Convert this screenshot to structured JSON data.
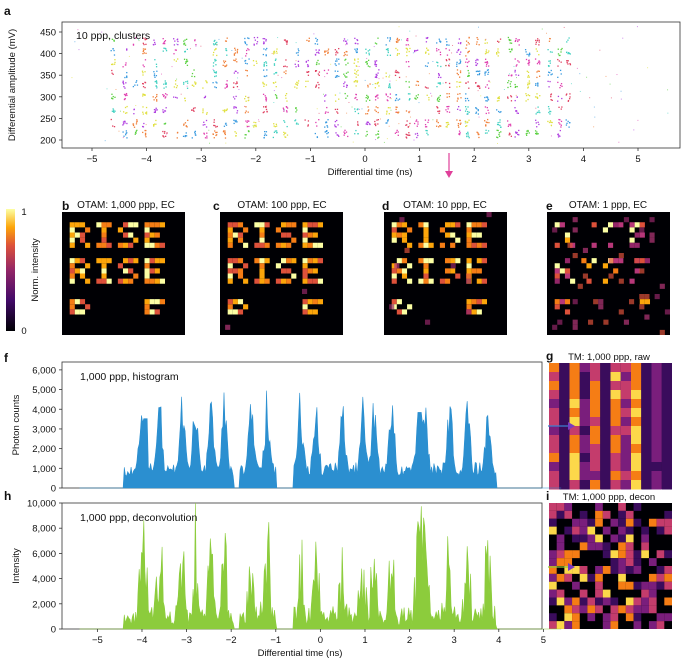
{
  "panel_letters": [
    "a",
    "b",
    "c",
    "d",
    "e",
    "f",
    "g",
    "h",
    "i"
  ],
  "panel_a": {
    "annotation": "10 ppp, clusters",
    "xlabel": "Differential time (ns)",
    "ylabel": "Differential amplitude (mV)",
    "x_ticks": [
      "−5",
      "−4",
      "−3",
      "−2",
      "−1",
      "0",
      "1",
      "2",
      "3",
      "4",
      "5"
    ],
    "y_ticks": [
      "200",
      "250",
      "300",
      "350",
      "400",
      "450"
    ]
  },
  "panel_titles": {
    "b": "OTAM: 1,000 ppp, EC",
    "c": "OTAM: 100 ppp, EC",
    "d": "OTAM: 10 ppp, EC",
    "e": "OTAM: 1 ppp, EC",
    "g": "TM: 1,000 ppp, raw",
    "i": "TM: 1,000 ppp, decon"
  },
  "colorbar": {
    "label": "Norm. intensity",
    "max": "1",
    "min": "0"
  },
  "panel_f": {
    "annotation": "1,000 ppp, histogram",
    "ylabel": "Photon counts",
    "y_ticks": [
      "0",
      "1,000",
      "2,000",
      "3,000",
      "4,000",
      "5,000",
      "6,000"
    ],
    "color": "#2b8fd0"
  },
  "panel_h": {
    "annotation": "1,000 ppp, deconvolution",
    "ylabel": "Intensity",
    "xlabel": "Differential time (ns)",
    "y_ticks": [
      "0",
      "2,000",
      "4,000",
      "6,000",
      "8,000",
      "10,000"
    ],
    "x_ticks": [
      "−5",
      "−4",
      "−3",
      "−2",
      "−1",
      "0",
      "1",
      "2",
      "3",
      "4",
      "5"
    ],
    "color": "#8ccc3c"
  },
  "arrows": {
    "pink": "#e0409a",
    "blue": "#3a7fd0",
    "green": "#8cc63c",
    "purple": "#7a3ac0"
  }
}
